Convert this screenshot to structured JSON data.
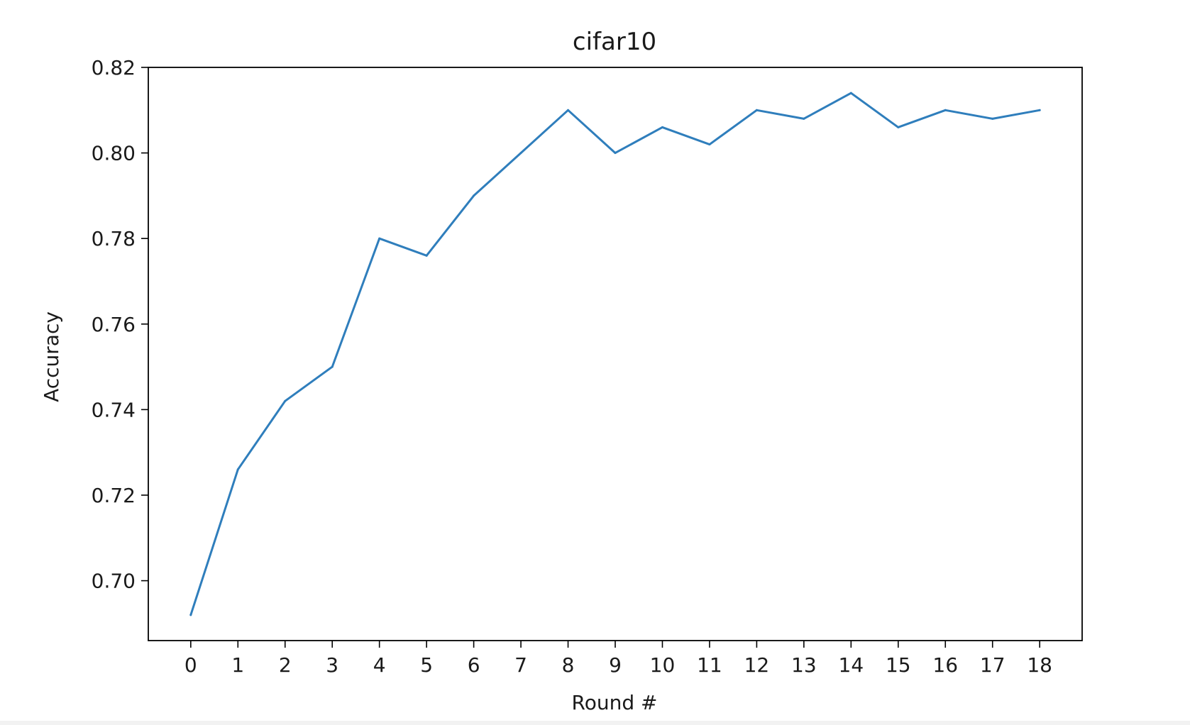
{
  "chart_data": {
    "type": "line",
    "title": "cifar10",
    "xlabel": "Round #",
    "ylabel": "Accuracy",
    "x": [
      0,
      1,
      2,
      3,
      4,
      5,
      6,
      7,
      8,
      9,
      10,
      11,
      12,
      13,
      14,
      15,
      16,
      17,
      18
    ],
    "x_ticks": [
      "0",
      "1",
      "2",
      "3",
      "4",
      "5",
      "6",
      "7",
      "8",
      "9",
      "10",
      "11",
      "12",
      "13",
      "14",
      "15",
      "16",
      "17",
      "18"
    ],
    "y_ticks": [
      "0.70",
      "0.72",
      "0.74",
      "0.76",
      "0.78",
      "0.80",
      "0.82"
    ],
    "ylim": [
      0.686,
      0.82
    ],
    "xlim": [
      -0.9,
      18.9
    ],
    "grid": false,
    "series": [
      {
        "color": "#2f7ebc",
        "values": [
          0.692,
          0.726,
          0.742,
          0.75,
          0.78,
          0.776,
          0.79,
          0.8,
          0.81,
          0.8,
          0.806,
          0.802,
          0.81,
          0.808,
          0.814,
          0.806,
          0.81,
          0.808,
          0.81
        ]
      }
    ]
  }
}
